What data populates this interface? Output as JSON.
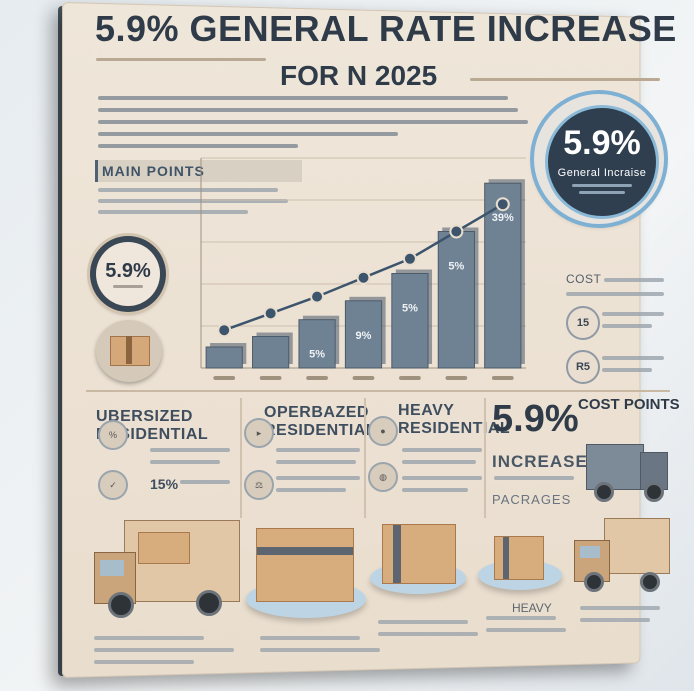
{
  "title": {
    "line1": "5.9% GENERAL RATE INCREASE",
    "line2": "FOR N 2025"
  },
  "main_points": {
    "label": "MAIN POINTS"
  },
  "badges": {
    "big": {
      "pct": "5.9%",
      "sub": "General Incraise"
    },
    "small": {
      "pct": "5.9%"
    }
  },
  "chart_data": {
    "type": "bar",
    "bars": [
      {
        "label": "",
        "value": 1
      },
      {
        "label": "",
        "value": 1.5
      },
      {
        "label": "5%",
        "value": 2.3
      },
      {
        "label": "9%",
        "value": 3.2
      },
      {
        "label": "5%",
        "value": 4.5
      },
      {
        "label": "5%",
        "value": 6.5
      },
      {
        "label": "39%",
        "value": 8.8
      }
    ],
    "line": [
      1.8,
      2.6,
      3.4,
      4.3,
      5.2,
      6.5,
      7.8
    ],
    "ylim": [
      0,
      10
    ],
    "grid": true,
    "colors": {
      "bar": "#6f8294",
      "line": "#3c556d"
    }
  },
  "side": {
    "title": "COST",
    "items": [
      {
        "label": "15"
      },
      {
        "label": "R5"
      }
    ]
  },
  "categories": [
    {
      "name": "UBERSIZED",
      "sub": "RESIDENTIAL",
      "pct": "15%"
    },
    {
      "name": "OPERBAZED",
      "sub": "RESIDENTIAL"
    },
    {
      "name": "HEAVY",
      "sub": "RESIDENTIAL"
    }
  ],
  "highlight": {
    "pct": "5.9%",
    "cost_points": "COST POINTS",
    "increase": "INCREASE",
    "packages": "PACRAGES"
  },
  "footer": {
    "heavy": "HEAVY"
  },
  "icons": [
    "box-icon",
    "truck-icon",
    "package-icon",
    "percent-icon"
  ]
}
